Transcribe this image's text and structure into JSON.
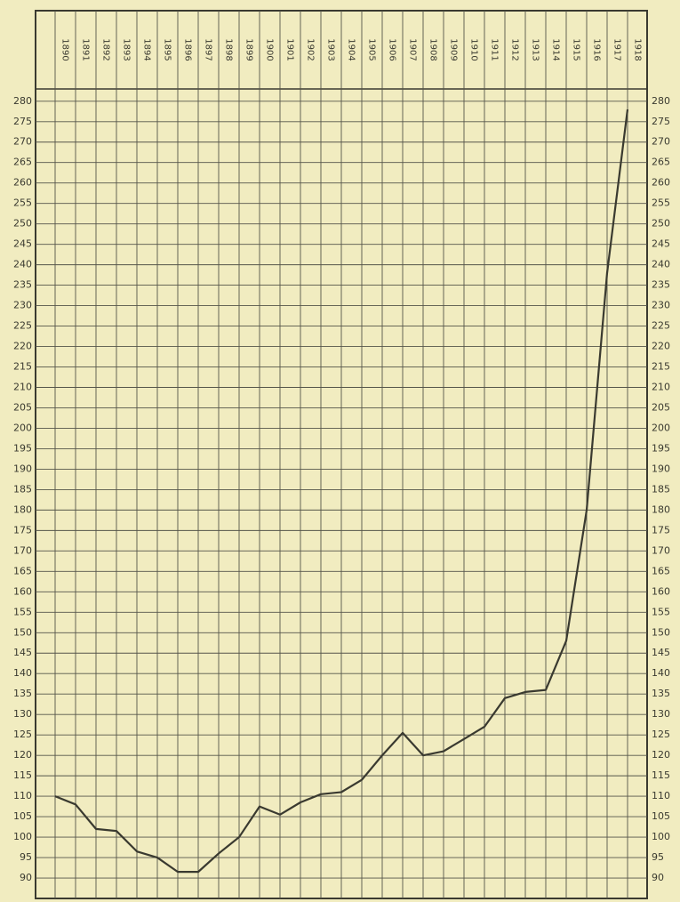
{
  "chart_data": {
    "type": "line",
    "categories": [
      "1890",
      "1891",
      "1892",
      "1893",
      "1894",
      "1895",
      "1896",
      "1897",
      "1898",
      "1899",
      "1900",
      "1901",
      "1902",
      "1903",
      "1904",
      "1905",
      "1906",
      "1907",
      "1908",
      "1909",
      "1910",
      "1911",
      "1912",
      "1913",
      "1914",
      "1915",
      "1916",
      "1917",
      "1918"
    ],
    "series": [
      {
        "color": "#3a3a30",
        "values": [
          110,
          108,
          102,
          101.5,
          96.5,
          95,
          91.5,
          91.5,
          96,
          100,
          107.5,
          105.5,
          108.5,
          110.5,
          111,
          114,
          120,
          125.5,
          120,
          121,
          124,
          127,
          134,
          135.5,
          136,
          148,
          180,
          238,
          278
        ]
      }
    ],
    "ylim": [
      85,
      283
    ],
    "yticks": [
      90,
      95,
      100,
      105,
      110,
      115,
      120,
      125,
      130,
      135,
      140,
      145,
      150,
      155,
      160,
      165,
      170,
      175,
      180,
      185,
      190,
      195,
      200,
      205,
      210,
      215,
      220,
      225,
      230,
      235,
      240,
      245,
      250,
      255,
      260,
      265,
      270,
      275,
      280
    ],
    "grid": true
  }
}
